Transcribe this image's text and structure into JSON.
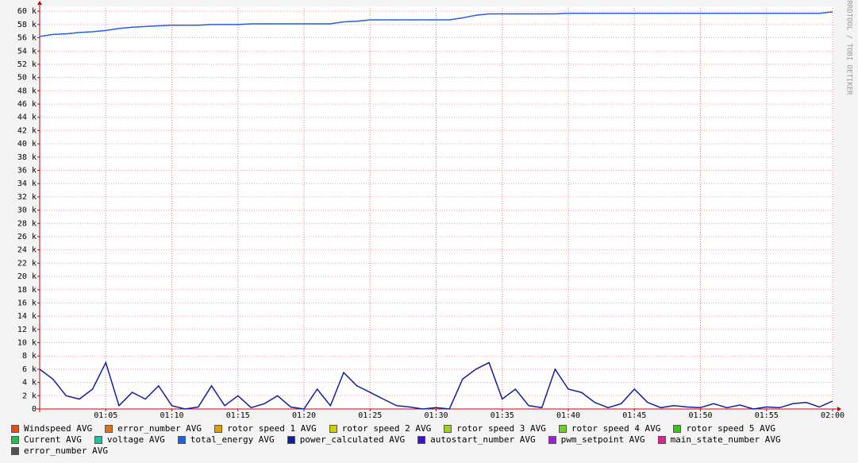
{
  "chart_data": {
    "type": "line",
    "watermark": "RRDTOOL / TOBI OETIKER",
    "x": [
      "01:00",
      "01:01",
      "01:02",
      "01:03",
      "01:04",
      "01:05",
      "01:06",
      "01:07",
      "01:08",
      "01:09",
      "01:10",
      "01:11",
      "01:12",
      "01:13",
      "01:14",
      "01:15",
      "01:16",
      "01:17",
      "01:18",
      "01:19",
      "01:20",
      "01:21",
      "01:22",
      "01:23",
      "01:24",
      "01:25",
      "01:26",
      "01:27",
      "01:28",
      "01:29",
      "01:30",
      "01:31",
      "01:32",
      "01:33",
      "01:34",
      "01:35",
      "01:36",
      "01:37",
      "01:38",
      "01:39",
      "01:40",
      "01:41",
      "01:42",
      "01:43",
      "01:44",
      "01:45",
      "01:46",
      "01:47",
      "01:48",
      "01:49",
      "01:50",
      "01:51",
      "01:52",
      "01:53",
      "01:54",
      "01:55",
      "01:56",
      "01:57",
      "01:58",
      "01:59",
      "02:00"
    ],
    "xlim": [
      "01:00",
      "02:00"
    ],
    "xticks": [
      "01:05",
      "01:10",
      "01:15",
      "01:20",
      "01:25",
      "01:30",
      "01:35",
      "01:40",
      "01:45",
      "01:50",
      "01:55",
      "02:00"
    ],
    "ylim": [
      0,
      60500
    ],
    "yticks": [
      0,
      {
        "value": 2000,
        "label": "2 k"
      },
      {
        "value": 4000,
        "label": "4 k"
      },
      {
        "value": 6000,
        "label": "6 k"
      },
      {
        "value": 8000,
        "label": "8 k"
      },
      {
        "value": 10000,
        "label": "10 k"
      },
      {
        "value": 12000,
        "label": "12 k"
      },
      {
        "value": 14000,
        "label": "14 k"
      },
      {
        "value": 16000,
        "label": "16 k"
      },
      {
        "value": 18000,
        "label": "18 k"
      },
      {
        "value": 20000,
        "label": "20 k"
      },
      {
        "value": 22000,
        "label": "22 k"
      },
      {
        "value": 24000,
        "label": "24 k"
      },
      {
        "value": 26000,
        "label": "26 k"
      },
      {
        "value": 28000,
        "label": "28 k"
      },
      {
        "value": 30000,
        "label": "30 k"
      },
      {
        "value": 32000,
        "label": "32 k"
      },
      {
        "value": 34000,
        "label": "34 k"
      },
      {
        "value": 36000,
        "label": "36 k"
      },
      {
        "value": 38000,
        "label": "38 k"
      },
      {
        "value": 40000,
        "label": "40 k"
      },
      {
        "value": 42000,
        "label": "42 k"
      },
      {
        "value": 44000,
        "label": "44 k"
      },
      {
        "value": 46000,
        "label": "46 k"
      },
      {
        "value": 48000,
        "label": "48 k"
      },
      {
        "value": 50000,
        "label": "50 k"
      },
      {
        "value": 52000,
        "label": "52 k"
      },
      {
        "value": 54000,
        "label": "54 k"
      },
      {
        "value": 56000,
        "label": "56 k"
      },
      {
        "value": 58000,
        "label": "58 k"
      },
      {
        "value": 60000,
        "label": "60 k"
      }
    ],
    "grid": true,
    "series": [
      {
        "name": "total_energy AVG",
        "color": "#2060e0",
        "values": [
          56200,
          56500,
          56600,
          56800,
          56900,
          57100,
          57400,
          57600,
          57700,
          57800,
          57900,
          57900,
          57900,
          58000,
          58000,
          58000,
          58100,
          58100,
          58100,
          58100,
          58100,
          58100,
          58100,
          58400,
          58500,
          58700,
          58700,
          58700,
          58700,
          58700,
          58700,
          58700,
          59000,
          59400,
          59600,
          59600,
          59600,
          59600,
          59600,
          59600,
          59700,
          59700,
          59700,
          59700,
          59700,
          59700,
          59700,
          59700,
          59700,
          59700,
          59700,
          59700,
          59700,
          59700,
          59700,
          59700,
          59700,
          59700,
          59700,
          59700,
          59900
        ]
      },
      {
        "name": "power_calculated AVG",
        "color": "#1020a0",
        "values": [
          6000,
          4500,
          2000,
          1500,
          3000,
          7000,
          500,
          2500,
          1500,
          3500,
          500,
          0,
          300,
          3500,
          500,
          2000,
          200,
          800,
          2000,
          300,
          0,
          3000,
          500,
          5500,
          3500,
          2500,
          1500,
          500,
          300,
          0,
          200,
          0,
          4500,
          6000,
          7000,
          1500,
          3000,
          500,
          200,
          6000,
          3000,
          2500,
          1000,
          200,
          800,
          3000,
          1000,
          200,
          500,
          300,
          200,
          800,
          200,
          600,
          0,
          300,
          200,
          800,
          1000,
          300,
          1200
        ]
      }
    ],
    "legend": [
      {
        "name": "Windspeed AVG",
        "color": "#e84a1a"
      },
      {
        "name": "error_number AVG",
        "color": "#e07020"
      },
      {
        "name": "rotor speed 1 AVG",
        "color": "#e0a000"
      },
      {
        "name": "rotor speed 2 AVG",
        "color": "#d0d000"
      },
      {
        "name": "rotor speed 3 AVG",
        "color": "#a0d020"
      },
      {
        "name": "rotor speed 4 AVG",
        "color": "#70d020"
      },
      {
        "name": "rotor speed 5 AVG",
        "color": "#40c020"
      },
      {
        "name": "Current AVG",
        "color": "#20c050"
      },
      {
        "name": "voltage AVG",
        "color": "#20c0a0"
      },
      {
        "name": "total_energy AVG",
        "color": "#2060e0"
      },
      {
        "name": "power_calculated AVG",
        "color": "#1020a0"
      },
      {
        "name": "autostart_number AVG",
        "color": "#4010d0"
      },
      {
        "name": "pwm_setpoint AVG",
        "color": "#a020d0"
      },
      {
        "name": "main_state_number AVG",
        "color": "#e02090"
      },
      {
        "name": "error_number AVG",
        "color": "#505050"
      }
    ]
  }
}
